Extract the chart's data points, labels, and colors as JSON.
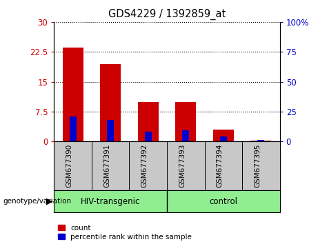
{
  "title": "GDS4229 / 1392859_at",
  "samples": [
    "GSM677390",
    "GSM677391",
    "GSM677392",
    "GSM677393",
    "GSM677394",
    "GSM677395"
  ],
  "count_values": [
    23.5,
    19.5,
    10.0,
    10.0,
    3.0,
    0.3
  ],
  "percentile_values": [
    6.3,
    5.5,
    2.5,
    2.8,
    1.2,
    0.4
  ],
  "left_ylim": [
    0,
    30
  ],
  "right_ylim": [
    0,
    100
  ],
  "left_yticks": [
    0,
    7.5,
    15,
    22.5,
    30
  ],
  "right_yticks": [
    0,
    25,
    50,
    75,
    100
  ],
  "left_yticklabels": [
    "0",
    "7.5",
    "15",
    "22.5",
    "30"
  ],
  "right_yticklabels": [
    "0",
    "25",
    "50",
    "75",
    "100%"
  ],
  "bar_color": "#cc0000",
  "percentile_color": "#0000cc",
  "bar_width": 0.55,
  "blue_bar_width": 0.18,
  "groups": [
    {
      "label": "HIV-transgenic",
      "span": [
        0,
        2
      ]
    },
    {
      "label": "control",
      "span": [
        3,
        5
      ]
    }
  ],
  "group_color": "#90ee90",
  "group_label": "genotype/variation",
  "left_tick_color": "#cc0000",
  "right_tick_color": "#0000cc",
  "legend_count_label": "count",
  "legend_percentile_label": "percentile rank within the sample",
  "plot_bg_color": "#ffffff",
  "tick_area_bg": "#c8c8c8",
  "grid_linestyle": "dotted"
}
